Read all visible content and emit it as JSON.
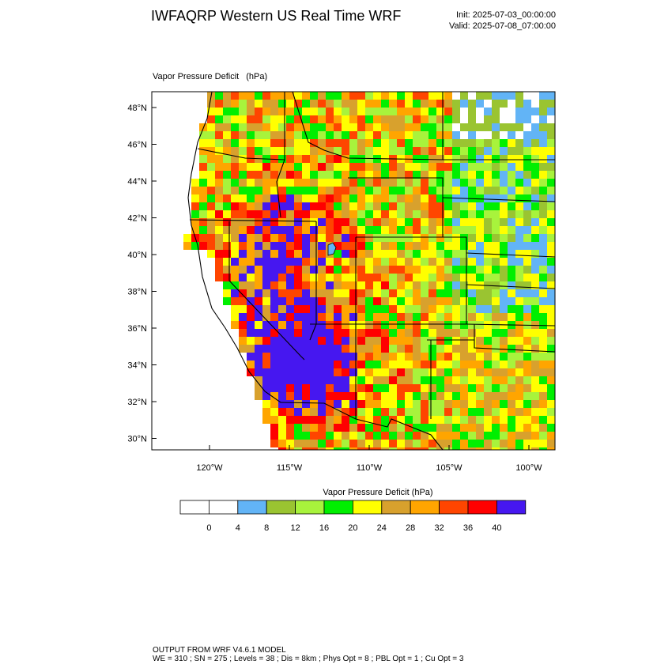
{
  "title": "IWFAQRP Western US Real Time WRF",
  "init_label": "Init: 2025-07-03_00:00:00",
  "valid_label": "Valid: 2025-07-08_07:00:00",
  "field": {
    "name": "Vapor Pressure Deficit",
    "units": "(hPa)"
  },
  "map": {
    "lat_ticks": [
      "48°N",
      "46°N",
      "44°N",
      "42°N",
      "40°N",
      "38°N",
      "36°N",
      "34°N",
      "32°N",
      "30°N"
    ],
    "lon_ticks": [
      "120°W",
      "115°W",
      "110°W",
      "105°W",
      "100°W"
    ]
  },
  "colorbar": {
    "title": "Vapor Pressure Deficit  (hPa)",
    "labels": [
      "0",
      "4",
      "8",
      "12",
      "16",
      "20",
      "24",
      "28",
      "32",
      "36",
      "40"
    ],
    "colors": [
      "#ffffff",
      "#ffffff",
      "#62b4f6",
      "#9ac431",
      "#a8f33c",
      "#00ef00",
      "#ffff00",
      "#d8a12d",
      "#ffa500",
      "#ff4500",
      "#ff0000",
      "#4617f0"
    ]
  },
  "footer": {
    "line1": "OUTPUT FROM WRF V4.6.1 MODEL",
    "line2": "WE = 310 ; SN = 275 ; Levels = 38 ; Dis = 8km ; Phys Opt = 8 ; PBL Opt = 1 ; Cu Opt = 3"
  }
}
